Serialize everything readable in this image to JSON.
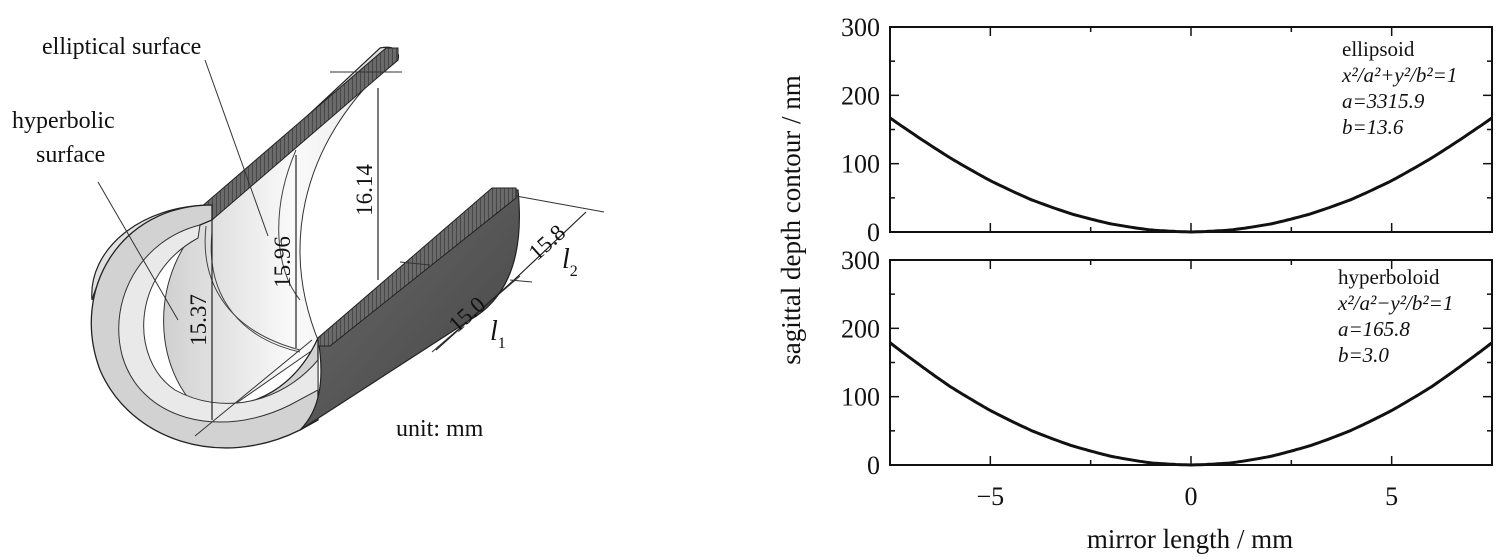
{
  "diagram": {
    "labels": {
      "elliptical": "elliptical surface",
      "hyperbolic_line1": "hyperbolic",
      "hyperbolic_line2": "surface",
      "unit": "unit: mm"
    },
    "dimensions": {
      "d1": "16.14",
      "d2": "15.96",
      "d3": "15.37",
      "l1_value": "15.0",
      "l2_value": "15.8",
      "l1_symbol": "l",
      "l1_sub": "1",
      "l2_symbol": "l",
      "l2_sub": "2"
    },
    "colors": {
      "shell_light": "#dcdcdc",
      "shell_mid": "#bdbdbd",
      "shell_dark": "#5a5a5a",
      "edge": "#222222"
    }
  },
  "chart_data": [
    {
      "type": "line",
      "panel": "top",
      "xlim": [
        -7.5,
        7.5
      ],
      "ylim": [
        0,
        300
      ],
      "x_ticks": [
        -5,
        0,
        5
      ],
      "x_tick_labels": [
        "",
        "",
        ""
      ],
      "y_ticks": [
        0,
        100,
        200,
        300
      ],
      "y_tick_labels": [
        "0",
        "100",
        "200",
        "300"
      ],
      "series": [
        {
          "x": [
            -7.5,
            -6,
            -5,
            -4,
            -3,
            -2,
            -1,
            0,
            1,
            2,
            3,
            4,
            5,
            6,
            7.5
          ],
          "y": [
            167,
            110,
            76,
            48,
            27,
            12,
            3,
            0,
            3,
            12,
            27,
            48,
            76,
            110,
            167
          ]
        }
      ],
      "annotation": {
        "name": "ellipsoid",
        "equation": "x²/a²+y²/b²=1",
        "param_a": "a=3315.9",
        "param_b": "b=13.6"
      }
    },
    {
      "type": "line",
      "panel": "bottom",
      "xlim": [
        -7.5,
        7.5
      ],
      "ylim": [
        0,
        300
      ],
      "x_ticks": [
        -5,
        0,
        5
      ],
      "x_tick_labels": [
        "−5",
        "0",
        "5"
      ],
      "y_ticks": [
        0,
        100,
        200,
        300
      ],
      "y_tick_labels": [
        "0",
        "100",
        "200",
        "300"
      ],
      "xlabel": "mirror length / mm",
      "series": [
        {
          "x": [
            -7.5,
            -6,
            -5,
            -4,
            -3,
            -2,
            -1,
            0,
            1,
            2,
            3,
            4,
            5,
            6,
            7.5
          ],
          "y": [
            179,
            115,
            80,
            51,
            29,
            13,
            3,
            0,
            3,
            13,
            29,
            51,
            80,
            115,
            179
          ]
        }
      ],
      "annotation": {
        "name": "hyperboloid",
        "equation": "x²/a²−y²/b²=1",
        "param_a": "a=165.8",
        "param_b": "b=3.0"
      }
    }
  ],
  "shared_ylabel": "sagittal depth contour / nm"
}
